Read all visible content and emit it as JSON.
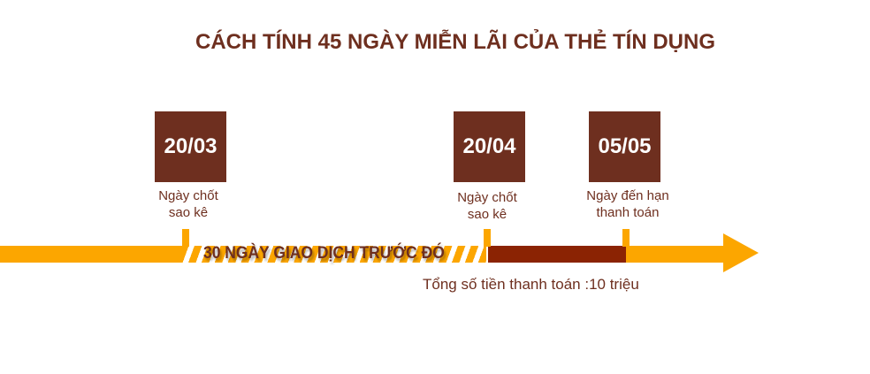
{
  "title": "CÁCH TÍNH 45 NGÀY MIỄN LÃI CỦA THẺ TÍN DỤNG",
  "milestones": [
    {
      "date": "20/03",
      "label_line1": "Ngày chốt",
      "label_line2": "sao kê"
    },
    {
      "date": "20/04",
      "label_line1": "Ngày chốt",
      "label_line2": "sao kê"
    },
    {
      "date": "05/05",
      "label_line1": "Ngày đến hạn",
      "label_line2": "thanh toán"
    }
  ],
  "period_label": "30 NGÀY GIAO DỊCH TRƯỚC ĐÓ",
  "total_label": "Tổng số tiền thanh toán :10 triệu",
  "colors": {
    "primary": "#6e2f1f",
    "timeline": "#fca600",
    "highlight": "#8b2303"
  }
}
